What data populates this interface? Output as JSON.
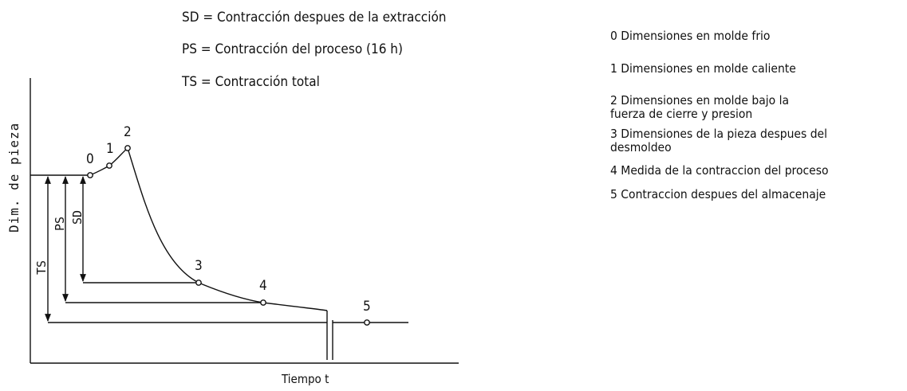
{
  "abbreviations": [
    {
      "code": "SD",
      "text": "SD = Contracción despues de la extracción"
    },
    {
      "code": "PS",
      "text": "PS = Contracción del proceso (16 h)"
    },
    {
      "code": "TS",
      "text": "TS = Contracción total"
    }
  ],
  "axis": {
    "y_label": "Dim. de pieza",
    "x_label": "Tiempo t"
  },
  "points": [
    "0",
    "1",
    "2",
    "3",
    "4",
    "5"
  ],
  "dimension_labels": [
    "TS",
    "PS",
    "SD"
  ],
  "legend": [
    {
      "line1": "0 Dimensiones en molde frio",
      "line2": ""
    },
    {
      "line1": "1 Dimensiones en molde caliente",
      "line2": ""
    },
    {
      "line1": "2 Dimensiones en molde bajo la",
      "line2": "fuerza de cierre y presion"
    },
    {
      "line1": "3 Dimensiones de la pieza despues del",
      "line2": "desmoldeo"
    },
    {
      "line1": "4 Medida de la contraccion del proceso",
      "line2": ""
    },
    {
      "line1": "5  Contraccion despues del almacenaje",
      "line2": ""
    }
  ],
  "colors": {
    "ink": "#111111",
    "background": "#ffffff"
  }
}
